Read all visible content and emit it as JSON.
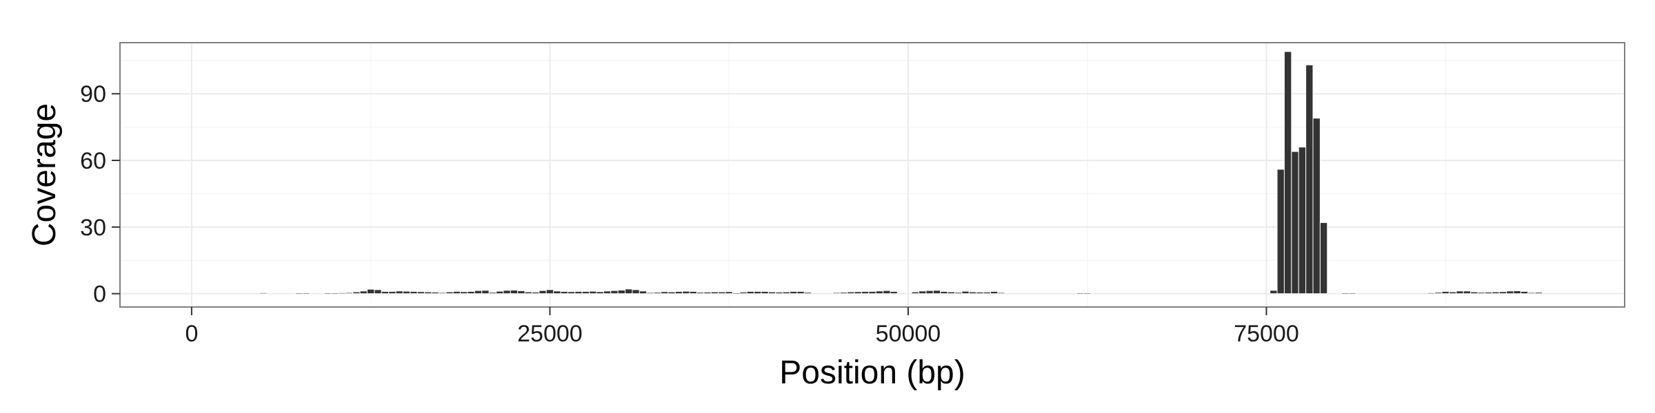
{
  "chart_data": {
    "type": "bar",
    "title": "",
    "xlabel": "Position (bp)",
    "ylabel": "Coverage",
    "xlim": [
      -5000,
      100000
    ],
    "ylim": [
      -6,
      113
    ],
    "x_ticks": [
      0,
      25000,
      50000,
      75000
    ],
    "x_tick_labels": [
      "0",
      "25000",
      "50000",
      "75000"
    ],
    "y_ticks": [
      0,
      30,
      60,
      90
    ],
    "y_tick_labels": [
      "0",
      "30",
      "60",
      "90"
    ],
    "grid": true,
    "legend": "none",
    "bin_width": 500,
    "bars": [
      {
        "x": 5000,
        "y": 0.4
      },
      {
        "x": 7500,
        "y": 0.3
      },
      {
        "x": 8000,
        "y": 0.3
      },
      {
        "x": 9500,
        "y": 0.3
      },
      {
        "x": 10000,
        "y": 0.3
      },
      {
        "x": 10500,
        "y": 0.4
      },
      {
        "x": 11000,
        "y": 0.5
      },
      {
        "x": 11500,
        "y": 0.8
      },
      {
        "x": 12000,
        "y": 1.2
      },
      {
        "x": 12500,
        "y": 2
      },
      {
        "x": 13000,
        "y": 1.8
      },
      {
        "x": 13500,
        "y": 1
      },
      {
        "x": 14000,
        "y": 1
      },
      {
        "x": 14500,
        "y": 1.2
      },
      {
        "x": 15000,
        "y": 1.1
      },
      {
        "x": 15500,
        "y": 1
      },
      {
        "x": 16000,
        "y": 0.9
      },
      {
        "x": 16500,
        "y": 0.8
      },
      {
        "x": 17000,
        "y": 0.7
      },
      {
        "x": 17500,
        "y": 0.5
      },
      {
        "x": 18000,
        "y": 0.8
      },
      {
        "x": 18500,
        "y": 1
      },
      {
        "x": 19000,
        "y": 0.9
      },
      {
        "x": 19500,
        "y": 1
      },
      {
        "x": 20000,
        "y": 1.4
      },
      {
        "x": 20500,
        "y": 1.5
      },
      {
        "x": 21000,
        "y": 0.6
      },
      {
        "x": 21500,
        "y": 1.1
      },
      {
        "x": 22000,
        "y": 1.5
      },
      {
        "x": 22500,
        "y": 1.6
      },
      {
        "x": 23000,
        "y": 1.3
      },
      {
        "x": 23500,
        "y": 0.8
      },
      {
        "x": 24000,
        "y": 0.7
      },
      {
        "x": 24500,
        "y": 1.4
      },
      {
        "x": 25000,
        "y": 1.8
      },
      {
        "x": 25500,
        "y": 1.2
      },
      {
        "x": 26000,
        "y": 1
      },
      {
        "x": 26500,
        "y": 0.9
      },
      {
        "x": 27000,
        "y": 1
      },
      {
        "x": 27500,
        "y": 1
      },
      {
        "x": 28000,
        "y": 1.1
      },
      {
        "x": 28500,
        "y": 0.9
      },
      {
        "x": 29000,
        "y": 1.2
      },
      {
        "x": 29500,
        "y": 1.4
      },
      {
        "x": 30000,
        "y": 1.6
      },
      {
        "x": 30500,
        "y": 2.1
      },
      {
        "x": 31000,
        "y": 1.8
      },
      {
        "x": 31500,
        "y": 1.2
      },
      {
        "x": 32000,
        "y": 0.5
      },
      {
        "x": 32500,
        "y": 0.6
      },
      {
        "x": 33000,
        "y": 0.9
      },
      {
        "x": 33500,
        "y": 0.8
      },
      {
        "x": 34000,
        "y": 1
      },
      {
        "x": 34500,
        "y": 1.1
      },
      {
        "x": 35000,
        "y": 1
      },
      {
        "x": 35500,
        "y": 0.6
      },
      {
        "x": 36000,
        "y": 0.7
      },
      {
        "x": 36500,
        "y": 0.8
      },
      {
        "x": 37000,
        "y": 0.8
      },
      {
        "x": 37500,
        "y": 0.9
      },
      {
        "x": 38000,
        "y": 0.3
      },
      {
        "x": 38500,
        "y": 0.7
      },
      {
        "x": 39000,
        "y": 1
      },
      {
        "x": 39500,
        "y": 1
      },
      {
        "x": 40000,
        "y": 1
      },
      {
        "x": 40500,
        "y": 0.8
      },
      {
        "x": 41000,
        "y": 0.7
      },
      {
        "x": 41500,
        "y": 0.8
      },
      {
        "x": 42000,
        "y": 1
      },
      {
        "x": 42500,
        "y": 1
      },
      {
        "x": 43000,
        "y": 0.6
      },
      {
        "x": 45000,
        "y": 0.5
      },
      {
        "x": 45500,
        "y": 0.6
      },
      {
        "x": 46000,
        "y": 0.8
      },
      {
        "x": 46500,
        "y": 0.9
      },
      {
        "x": 47000,
        "y": 1
      },
      {
        "x": 47500,
        "y": 1
      },
      {
        "x": 48000,
        "y": 1.2
      },
      {
        "x": 48500,
        "y": 1.4
      },
      {
        "x": 49000,
        "y": 1
      },
      {
        "x": 50500,
        "y": 0.8
      },
      {
        "x": 51000,
        "y": 1.2
      },
      {
        "x": 51500,
        "y": 1.4
      },
      {
        "x": 52000,
        "y": 1.5
      },
      {
        "x": 52500,
        "y": 1
      },
      {
        "x": 53000,
        "y": 0.8
      },
      {
        "x": 53500,
        "y": 0.6
      },
      {
        "x": 54000,
        "y": 1.1
      },
      {
        "x": 54500,
        "y": 0.8
      },
      {
        "x": 55000,
        "y": 0.7
      },
      {
        "x": 55500,
        "y": 0.7
      },
      {
        "x": 56000,
        "y": 1
      },
      {
        "x": 56500,
        "y": 0.5
      },
      {
        "x": 62000,
        "y": 0.2
      },
      {
        "x": 62500,
        "y": 0.2
      },
      {
        "x": 75500,
        "y": 1.5
      },
      {
        "x": 76000,
        "y": 56
      },
      {
        "x": 76500,
        "y": 109
      },
      {
        "x": 77000,
        "y": 64
      },
      {
        "x": 77500,
        "y": 66
      },
      {
        "x": 78000,
        "y": 103
      },
      {
        "x": 78500,
        "y": 79
      },
      {
        "x": 79000,
        "y": 32
      },
      {
        "x": 80500,
        "y": 0.3
      },
      {
        "x": 81000,
        "y": 0.3
      },
      {
        "x": 86500,
        "y": 0.4
      },
      {
        "x": 87000,
        "y": 0.6
      },
      {
        "x": 87500,
        "y": 1
      },
      {
        "x": 88000,
        "y": 0.8
      },
      {
        "x": 88500,
        "y": 1.2
      },
      {
        "x": 89000,
        "y": 1.2
      },
      {
        "x": 89500,
        "y": 0.8
      },
      {
        "x": 90000,
        "y": 0.6
      },
      {
        "x": 90500,
        "y": 0.7
      },
      {
        "x": 91000,
        "y": 0.8
      },
      {
        "x": 91500,
        "y": 0.9
      },
      {
        "x": 92000,
        "y": 1.2
      },
      {
        "x": 92500,
        "y": 1.3
      },
      {
        "x": 93000,
        "y": 1
      },
      {
        "x": 93500,
        "y": 0.5
      },
      {
        "x": 94000,
        "y": 0.6
      }
    ],
    "colors": {
      "bar_fill": "#333333",
      "bar_stroke": "#ffffff",
      "panel_border": "#7f7f7f",
      "grid_major": "#ebebeb",
      "grid_minor": "#f5f5f5"
    }
  }
}
